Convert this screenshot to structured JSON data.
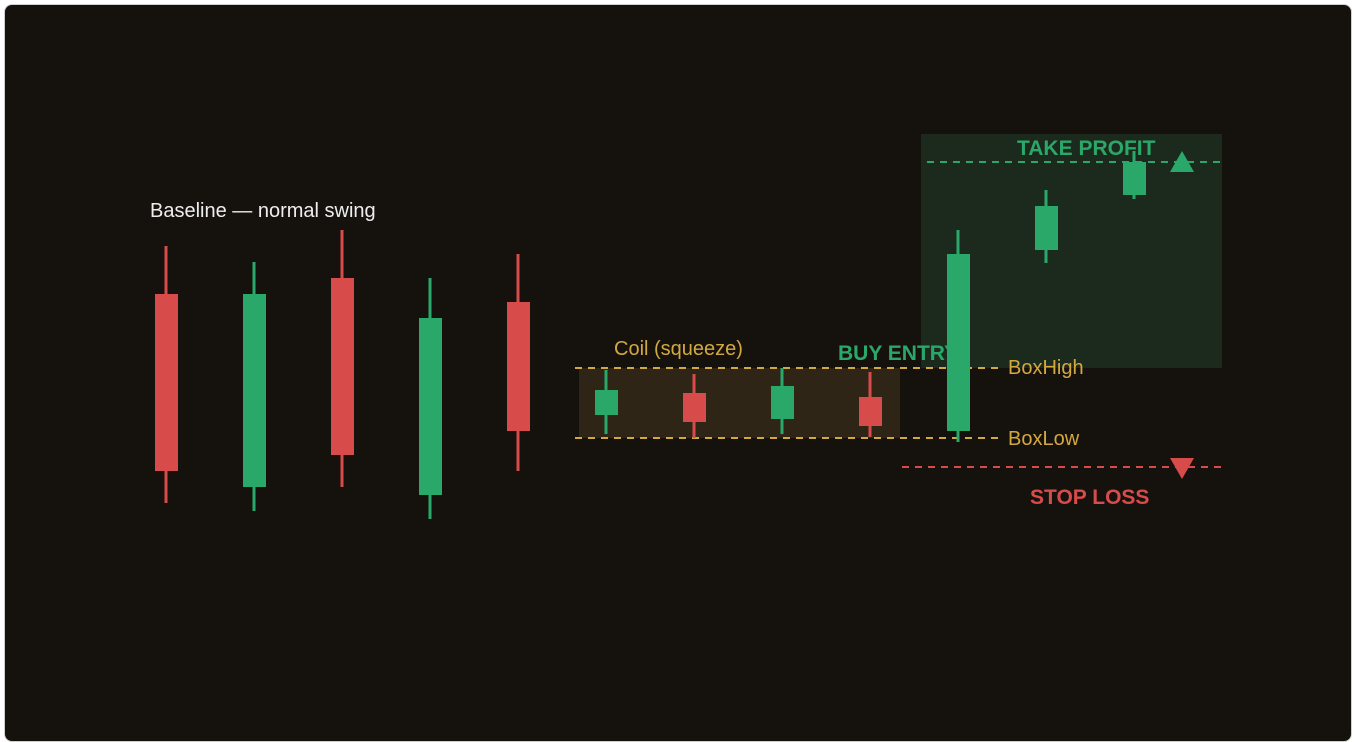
{
  "colors": {
    "background": "#15120e",
    "bull": "#2aa86a",
    "bear": "#d84b4b",
    "coil": "#d4a840",
    "label_light": "#eeeeee"
  },
  "labels": {
    "baseline": "Baseline — normal swing",
    "coil": "Coil (squeeze)",
    "buy_entry": "BUY ENTRY",
    "take_profit": "TAKE PROFIT",
    "stop_loss": "STOP LOSS",
    "box_high": "BoxHigh",
    "box_low": "BoxLow"
  },
  "icons": {
    "take_profit": "triangle-up-icon",
    "stop_loss": "triangle-down-icon"
  },
  "groups": {
    "baseline": [
      {
        "dir": "bear"
      },
      {
        "dir": "bull"
      },
      {
        "dir": "bear"
      },
      {
        "dir": "bull"
      },
      {
        "dir": "bear"
      }
    ],
    "coil": [
      {
        "dir": "bull"
      },
      {
        "dir": "bear"
      },
      {
        "dir": "bull"
      },
      {
        "dir": "bear"
      }
    ],
    "breakout": [
      {
        "dir": "bull"
      },
      {
        "dir": "bull"
      },
      {
        "dir": "bull"
      }
    ]
  }
}
